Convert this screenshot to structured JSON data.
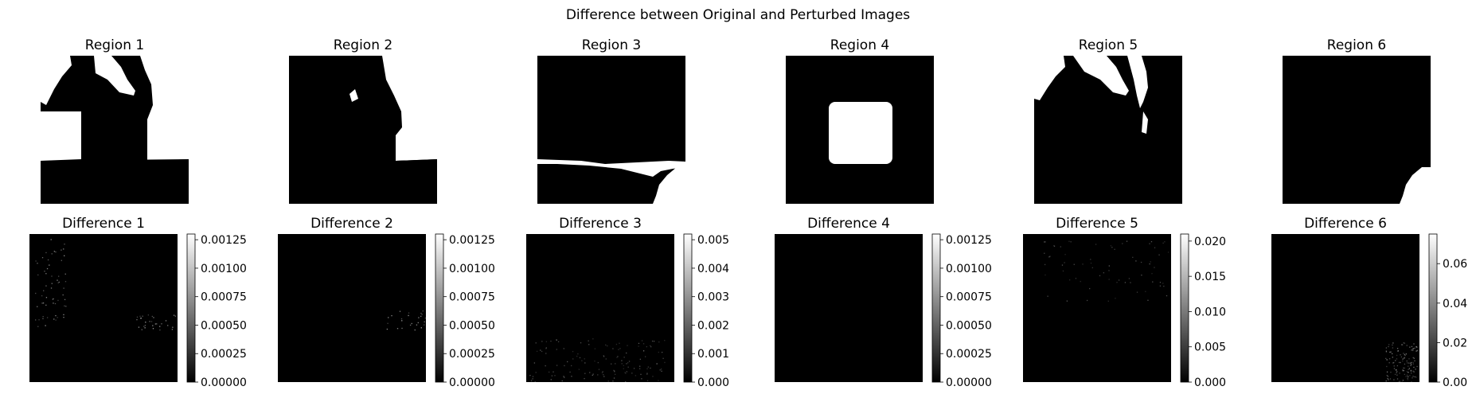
{
  "figure": {
    "title": "Difference between Original and Perturbed Images"
  },
  "chart_data": [
    {
      "type": "heatmap",
      "title": "Region 1",
      "colormap": "gray",
      "axis": "off",
      "image": "binary-mask",
      "content": "silhouette top, box middle-left, floor band bottom"
    },
    {
      "type": "heatmap",
      "title": "Region 2",
      "colormap": "gray",
      "axis": "off",
      "image": "binary-mask",
      "content": "silhouette outline and floor band"
    },
    {
      "type": "heatmap",
      "title": "Region 3",
      "colormap": "gray",
      "axis": "off",
      "image": "binary-mask",
      "content": "lower floor band with textured object at bottom-right"
    },
    {
      "type": "heatmap",
      "title": "Region 4",
      "colormap": "gray",
      "axis": "off",
      "image": "binary-mask",
      "content": "centered white cylinder"
    },
    {
      "type": "heatmap",
      "title": "Region 5",
      "colormap": "gray",
      "axis": "off",
      "image": "binary-mask",
      "content": "upper-left silhouette"
    },
    {
      "type": "heatmap",
      "title": "Region 6",
      "colormap": "gray",
      "axis": "off",
      "image": "binary-mask",
      "content": "small textured object at bottom-right"
    },
    {
      "type": "heatmap",
      "title": "Difference 1",
      "colormap": "gray",
      "axis": "off",
      "colorbar": {
        "range": [
          0,
          0.0013
        ],
        "ticks": [
          "0.00000",
          "0.00025",
          "0.00050",
          "0.00075",
          "0.00100",
          "0.00125"
        ],
        "tick_values": [
          0,
          0.00025,
          0.0005,
          0.00075,
          0.001,
          0.00125
        ]
      }
    },
    {
      "type": "heatmap",
      "title": "Difference 2",
      "colormap": "gray",
      "axis": "off",
      "colorbar": {
        "range": [
          0,
          0.0013
        ],
        "ticks": [
          "0.00000",
          "0.00025",
          "0.00050",
          "0.00075",
          "0.00100",
          "0.00125"
        ],
        "tick_values": [
          0,
          0.00025,
          0.0005,
          0.00075,
          0.001,
          0.00125
        ]
      }
    },
    {
      "type": "heatmap",
      "title": "Difference 3",
      "colormap": "gray",
      "axis": "off",
      "colorbar": {
        "range": [
          0,
          0.0052
        ],
        "ticks": [
          "0.000",
          "0.001",
          "0.002",
          "0.003",
          "0.004",
          "0.005"
        ],
        "tick_values": [
          0,
          0.001,
          0.002,
          0.003,
          0.004,
          0.005
        ]
      }
    },
    {
      "type": "heatmap",
      "title": "Difference 4",
      "colormap": "gray",
      "axis": "off",
      "colorbar": {
        "range": [
          0,
          0.0013
        ],
        "ticks": [
          "0.00000",
          "0.00025",
          "0.00050",
          "0.00075",
          "0.00100",
          "0.00125"
        ],
        "tick_values": [
          0,
          0.00025,
          0.0005,
          0.00075,
          0.001,
          0.00125
        ]
      }
    },
    {
      "type": "heatmap",
      "title": "Difference 5",
      "colormap": "gray",
      "axis": "off",
      "colorbar": {
        "range": [
          0,
          0.021
        ],
        "ticks": [
          "0.000",
          "0.005",
          "0.010",
          "0.015",
          "0.020"
        ],
        "tick_values": [
          0,
          0.005,
          0.01,
          0.015,
          0.02
        ]
      }
    },
    {
      "type": "heatmap",
      "title": "Difference 6",
      "colormap": "gray",
      "axis": "off",
      "colorbar": {
        "range": [
          0,
          0.075
        ],
        "ticks": [
          "0.00",
          "0.02",
          "0.04",
          "0.06"
        ],
        "tick_values": [
          0,
          0.02,
          0.04,
          0.06
        ]
      }
    }
  ]
}
